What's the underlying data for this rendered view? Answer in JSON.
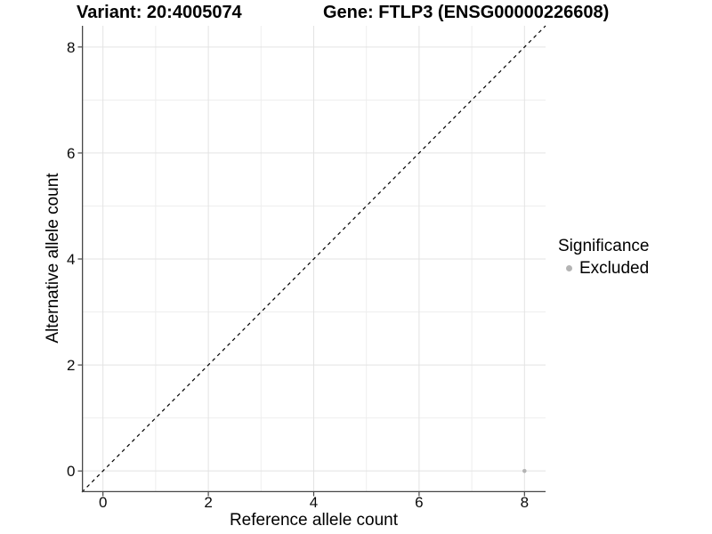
{
  "chart_data": {
    "type": "scatter",
    "title_variant": "Variant: 20:4005074",
    "title_gene": "Gene: FTLP3 (ENSG00000226608)",
    "xlabel": "Reference allele count",
    "ylabel": "Alternative allele count",
    "xlim": [
      -0.4,
      8.4
    ],
    "ylim": [
      -0.4,
      8.4
    ],
    "x_ticks": [
      0,
      2,
      4,
      6,
      8
    ],
    "y_ticks": [
      0,
      2,
      4,
      6,
      8
    ],
    "x_minor": [
      1,
      3,
      5,
      7
    ],
    "y_minor": [
      1,
      3,
      5,
      7
    ],
    "grid": true,
    "identity_line": {
      "equation": "y = x",
      "style": "dashed",
      "color": "#000000"
    },
    "series": [
      {
        "name": "Excluded",
        "color": "#b4b4b4",
        "points": [
          {
            "x": 8,
            "y": 0
          }
        ]
      }
    ],
    "legend": {
      "position": "right",
      "title": "Significance",
      "entries": [
        {
          "label": "Excluded",
          "color": "#b4b4b4"
        }
      ]
    },
    "style": {
      "axis_color": "#474747",
      "grid_major_color": "#e3e3e3",
      "grid_minor_color": "#eeeeee",
      "tick_label_color": "#0a0a0a",
      "background": "#ffffff",
      "point_radius": 2.3,
      "tick_label_size": 17
    }
  }
}
